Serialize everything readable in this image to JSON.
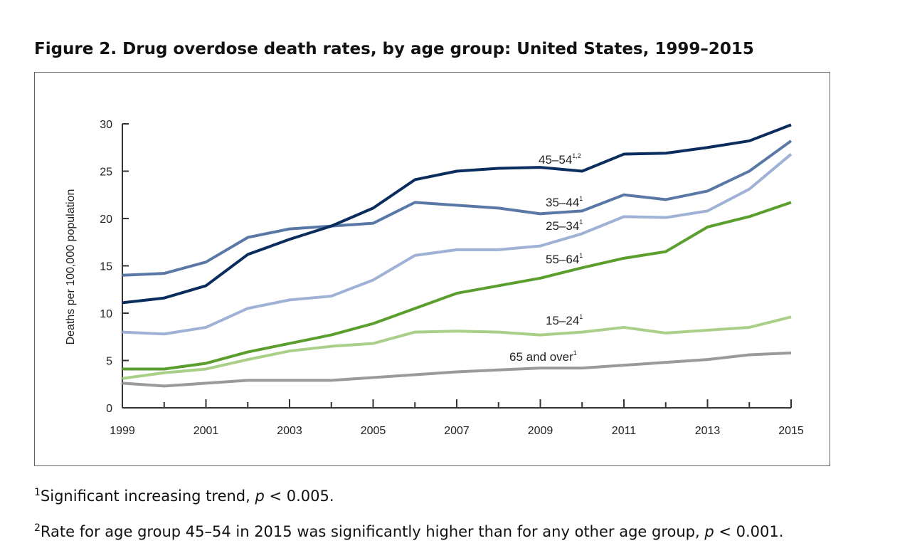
{
  "title": "Figure 2. Drug overdose death rates, by age group: United States, 1999–2015",
  "footnotes": [
    {
      "mark": "1",
      "pre": "Significant increasing trend, ",
      "p": "p",
      "post": " < 0.005."
    },
    {
      "mark": "2",
      "pre": "Rate for age group 45–54 in 2015 was significantly higher than for any other age group, ",
      "p": "p",
      "post": " < 0.001."
    }
  ],
  "chart_data": {
    "type": "line",
    "title": "Figure 2. Drug overdose death rates, by age group: United States, 1999–2015",
    "xlabel": "",
    "ylabel": "Deaths per 100,000 population",
    "x": [
      1999,
      2000,
      2001,
      2002,
      2003,
      2004,
      2005,
      2006,
      2007,
      2008,
      2009,
      2010,
      2011,
      2012,
      2013,
      2014,
      2015
    ],
    "xtick_labels": [
      "1999",
      "2001",
      "2003",
      "2005",
      "2007",
      "2009",
      "2011",
      "2013",
      "2015"
    ],
    "ytick_labels": [
      "0",
      "5",
      "10",
      "15",
      "20",
      "25",
      "30"
    ],
    "ylim": [
      0,
      30
    ],
    "xlim": [
      1999,
      2015
    ],
    "grid": false,
    "legend": "inline labels",
    "series": [
      {
        "name": "45–54",
        "sup": "1,2",
        "color": "#0b2d5e",
        "values": [
          11.1,
          11.6,
          12.9,
          16.2,
          17.8,
          19.2,
          21.1,
          24.1,
          25.0,
          25.3,
          25.4,
          25.0,
          26.8,
          26.9,
          27.5,
          28.2,
          29.9
        ]
      },
      {
        "name": "35–44",
        "sup": "1",
        "color": "#5a78a6",
        "values": [
          14.0,
          14.2,
          15.4,
          18.0,
          18.9,
          19.2,
          19.5,
          21.7,
          21.4,
          21.1,
          20.5,
          20.8,
          22.5,
          22.0,
          22.9,
          25.0,
          28.2
        ]
      },
      {
        "name": "25–34",
        "sup": "1",
        "color": "#9fb2d6",
        "values": [
          8.0,
          7.8,
          8.5,
          10.5,
          11.4,
          11.8,
          13.5,
          16.1,
          16.7,
          16.7,
          17.1,
          18.4,
          20.2,
          20.1,
          20.8,
          23.1,
          26.8
        ]
      },
      {
        "name": "55–64",
        "sup": "1",
        "color": "#5a9e2e",
        "values": [
          4.1,
          4.1,
          4.7,
          5.9,
          6.8,
          7.7,
          8.9,
          10.5,
          12.1,
          12.9,
          13.7,
          14.8,
          15.8,
          16.5,
          19.1,
          20.2,
          21.7
        ]
      },
      {
        "name": "15–24",
        "sup": "1",
        "color": "#a9cf88",
        "values": [
          3.1,
          3.7,
          4.1,
          5.1,
          6.0,
          6.5,
          6.8,
          8.0,
          8.1,
          8.0,
          7.7,
          8.0,
          8.5,
          7.9,
          8.2,
          8.5,
          9.6
        ]
      },
      {
        "name": "65 and over",
        "sup": "1",
        "color": "#9a9a9a",
        "values": [
          2.6,
          2.3,
          2.6,
          2.9,
          2.9,
          2.9,
          3.2,
          3.5,
          3.8,
          4.0,
          4.2,
          4.2,
          4.5,
          4.8,
          5.1,
          5.6,
          5.8
        ]
      }
    ]
  }
}
